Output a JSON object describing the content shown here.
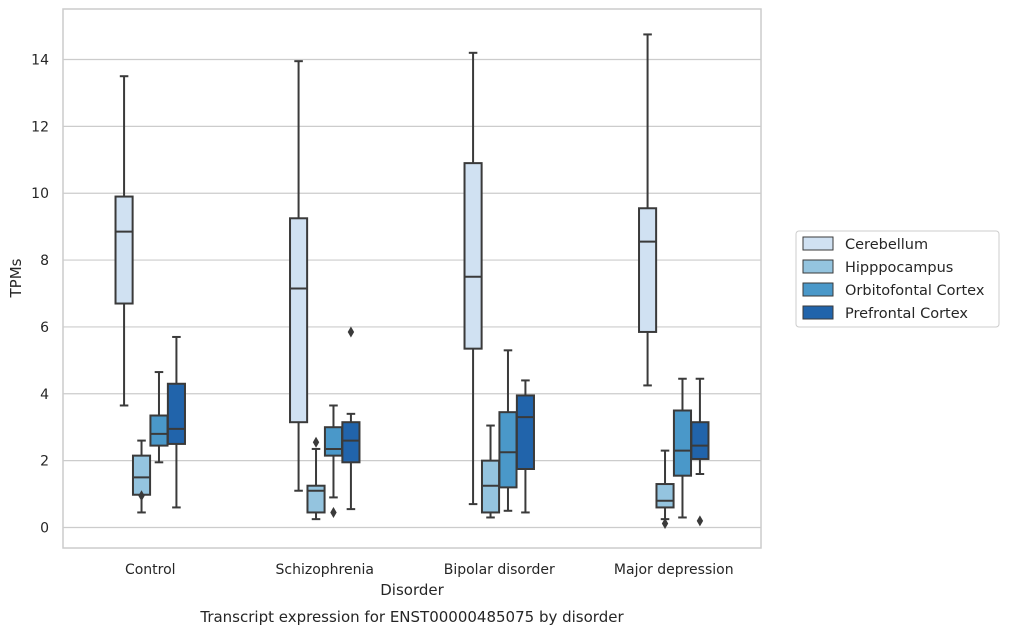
{
  "chart_data": {
    "type": "box",
    "caption": "Transcript expression for ENST00000485075 by disorder",
    "xlabel": "Disorder",
    "ylabel": "TPMs",
    "ylim": [
      -0.6,
      15.5
    ],
    "yticks": [
      0,
      2,
      4,
      6,
      8,
      10,
      12,
      14
    ],
    "grid": "horizontal",
    "legend_position": "right",
    "categories": [
      "Control",
      "Schizophrenia",
      "Bipolar disorder",
      "Major depression"
    ],
    "series": [
      {
        "name": "Cerebellum",
        "color": "#d0e1f2",
        "boxes": [
          {
            "whisker_low": 3.65,
            "q1": 6.7,
            "median": 8.85,
            "q3": 9.9,
            "whisker_high": 13.5,
            "outliers": []
          },
          {
            "whisker_low": 1.1,
            "q1": 3.15,
            "median": 7.15,
            "q3": 9.25,
            "whisker_high": 13.95,
            "outliers": []
          },
          {
            "whisker_low": 0.7,
            "q1": 5.35,
            "median": 7.5,
            "q3": 10.9,
            "whisker_high": 14.2,
            "outliers": []
          },
          {
            "whisker_low": 4.25,
            "q1": 5.85,
            "median": 8.55,
            "q3": 9.55,
            "whisker_high": 14.75,
            "outliers": []
          }
        ]
      },
      {
        "name": "Hipppocampus",
        "color": "#94c4df",
        "boxes": [
          {
            "whisker_low": 0.45,
            "q1": 0.98,
            "median": 1.5,
            "q3": 2.15,
            "whisker_high": 2.6,
            "outliers": [
              0.95
            ]
          },
          {
            "whisker_low": 0.25,
            "q1": 0.45,
            "median": 1.1,
            "q3": 1.25,
            "whisker_high": 2.35,
            "outliers": [
              2.55
            ]
          },
          {
            "whisker_low": 0.3,
            "q1": 0.45,
            "median": 1.25,
            "q3": 2.0,
            "whisker_high": 3.05,
            "outliers": []
          },
          {
            "whisker_low": 0.25,
            "q1": 0.6,
            "median": 0.8,
            "q3": 1.3,
            "whisker_high": 2.3,
            "outliers": [
              0.12
            ]
          }
        ]
      },
      {
        "name": "Orbitofontal Cortex",
        "color": "#4a98c9",
        "boxes": [
          {
            "whisker_low": 1.95,
            "q1": 2.45,
            "median": 2.8,
            "q3": 3.35,
            "whisker_high": 4.65,
            "outliers": []
          },
          {
            "whisker_low": 0.9,
            "q1": 2.15,
            "median": 2.35,
            "q3": 3.0,
            "whisker_high": 3.65,
            "outliers": [
              0.45
            ]
          },
          {
            "whisker_low": 0.5,
            "q1": 1.2,
            "median": 2.25,
            "q3": 3.45,
            "whisker_high": 5.3,
            "outliers": []
          },
          {
            "whisker_low": 0.3,
            "q1": 1.55,
            "median": 2.3,
            "q3": 3.5,
            "whisker_high": 4.45,
            "outliers": []
          }
        ]
      },
      {
        "name": "Prefrontal Cortex",
        "color": "#2164ab",
        "boxes": [
          {
            "whisker_low": 0.6,
            "q1": 2.5,
            "median": 2.95,
            "q3": 4.3,
            "whisker_high": 5.7,
            "outliers": []
          },
          {
            "whisker_low": 0.55,
            "q1": 1.95,
            "median": 2.6,
            "q3": 3.15,
            "whisker_high": 3.4,
            "outliers": [
              5.85
            ]
          },
          {
            "whisker_low": 0.45,
            "q1": 1.75,
            "median": 3.3,
            "q3": 3.95,
            "whisker_high": 4.4,
            "outliers": []
          },
          {
            "whisker_low": 1.6,
            "q1": 2.05,
            "median": 2.45,
            "q3": 3.15,
            "whisker_high": 4.45,
            "outliers": [
              0.2
            ]
          }
        ]
      }
    ]
  }
}
